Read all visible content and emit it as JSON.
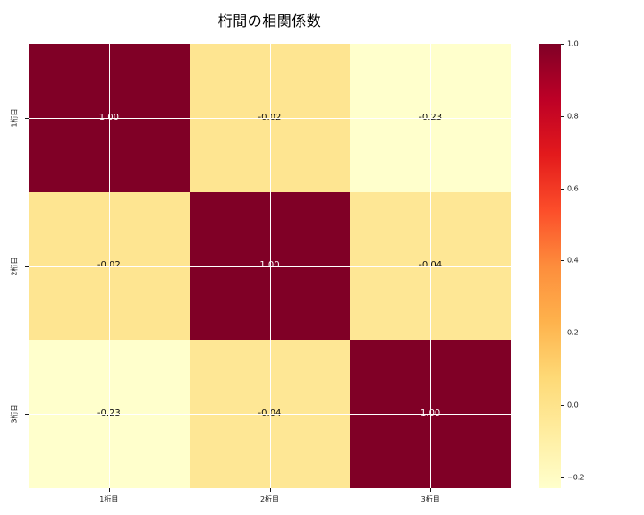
{
  "title": "桁間の相関係数",
  "chart_data": {
    "type": "heatmap",
    "title": "桁間の相関係数",
    "x_categories": [
      "1桁目",
      "2桁目",
      "3桁目"
    ],
    "y_categories": [
      "1桁目",
      "2桁目",
      "3桁目"
    ],
    "matrix": [
      [
        1.0,
        -0.02,
        -0.23
      ],
      [
        -0.02,
        1.0,
        -0.04
      ],
      [
        -0.23,
        -0.04,
        1.0
      ]
    ],
    "cell_labels": [
      [
        "1.00",
        "-0.02",
        "-0.23"
      ],
      [
        "-0.02",
        "1.00",
        "-0.04"
      ],
      [
        "-0.23",
        "-0.04",
        "1.00"
      ]
    ],
    "cell_colors": [
      [
        "#800026",
        "#fee591",
        "#ffffcc"
      ],
      [
        "#fee591",
        "#800026",
        "#fee795"
      ],
      [
        "#ffffcc",
        "#fee795",
        "#800026"
      ]
    ],
    "annotation_colors": [
      [
        "#ffffff",
        "#0d0d0d",
        "#0d0d0d"
      ],
      [
        "#0d0d0d",
        "#ffffff",
        "#0d0d0d"
      ],
      [
        "#0d0d0d",
        "#0d0d0d",
        "#ffffff"
      ]
    ],
    "colormap": "YlOrRd",
    "vmin": -0.23,
    "vmax": 1.0,
    "grid": true,
    "gridline_color": "#ffffff",
    "background": "#ffffff",
    "legend_position": "right-colorbar",
    "colorbar_ticks": [
      {
        "value": 1.0,
        "label": "1.0"
      },
      {
        "value": 0.8,
        "label": "0.8"
      },
      {
        "value": 0.6,
        "label": "0.6"
      },
      {
        "value": 0.4,
        "label": "0.4"
      },
      {
        "value": 0.2,
        "label": "0.2"
      },
      {
        "value": 0.0,
        "label": "0.0"
      },
      {
        "value": -0.2,
        "label": "−0.2"
      }
    ],
    "colorbar_gradient_stops": [
      "#800026",
      "#bd0026",
      "#e31a1c",
      "#fc4e2a",
      "#fd8d3c",
      "#feb24c",
      "#fed976",
      "#ffeda0",
      "#ffffcc"
    ]
  }
}
